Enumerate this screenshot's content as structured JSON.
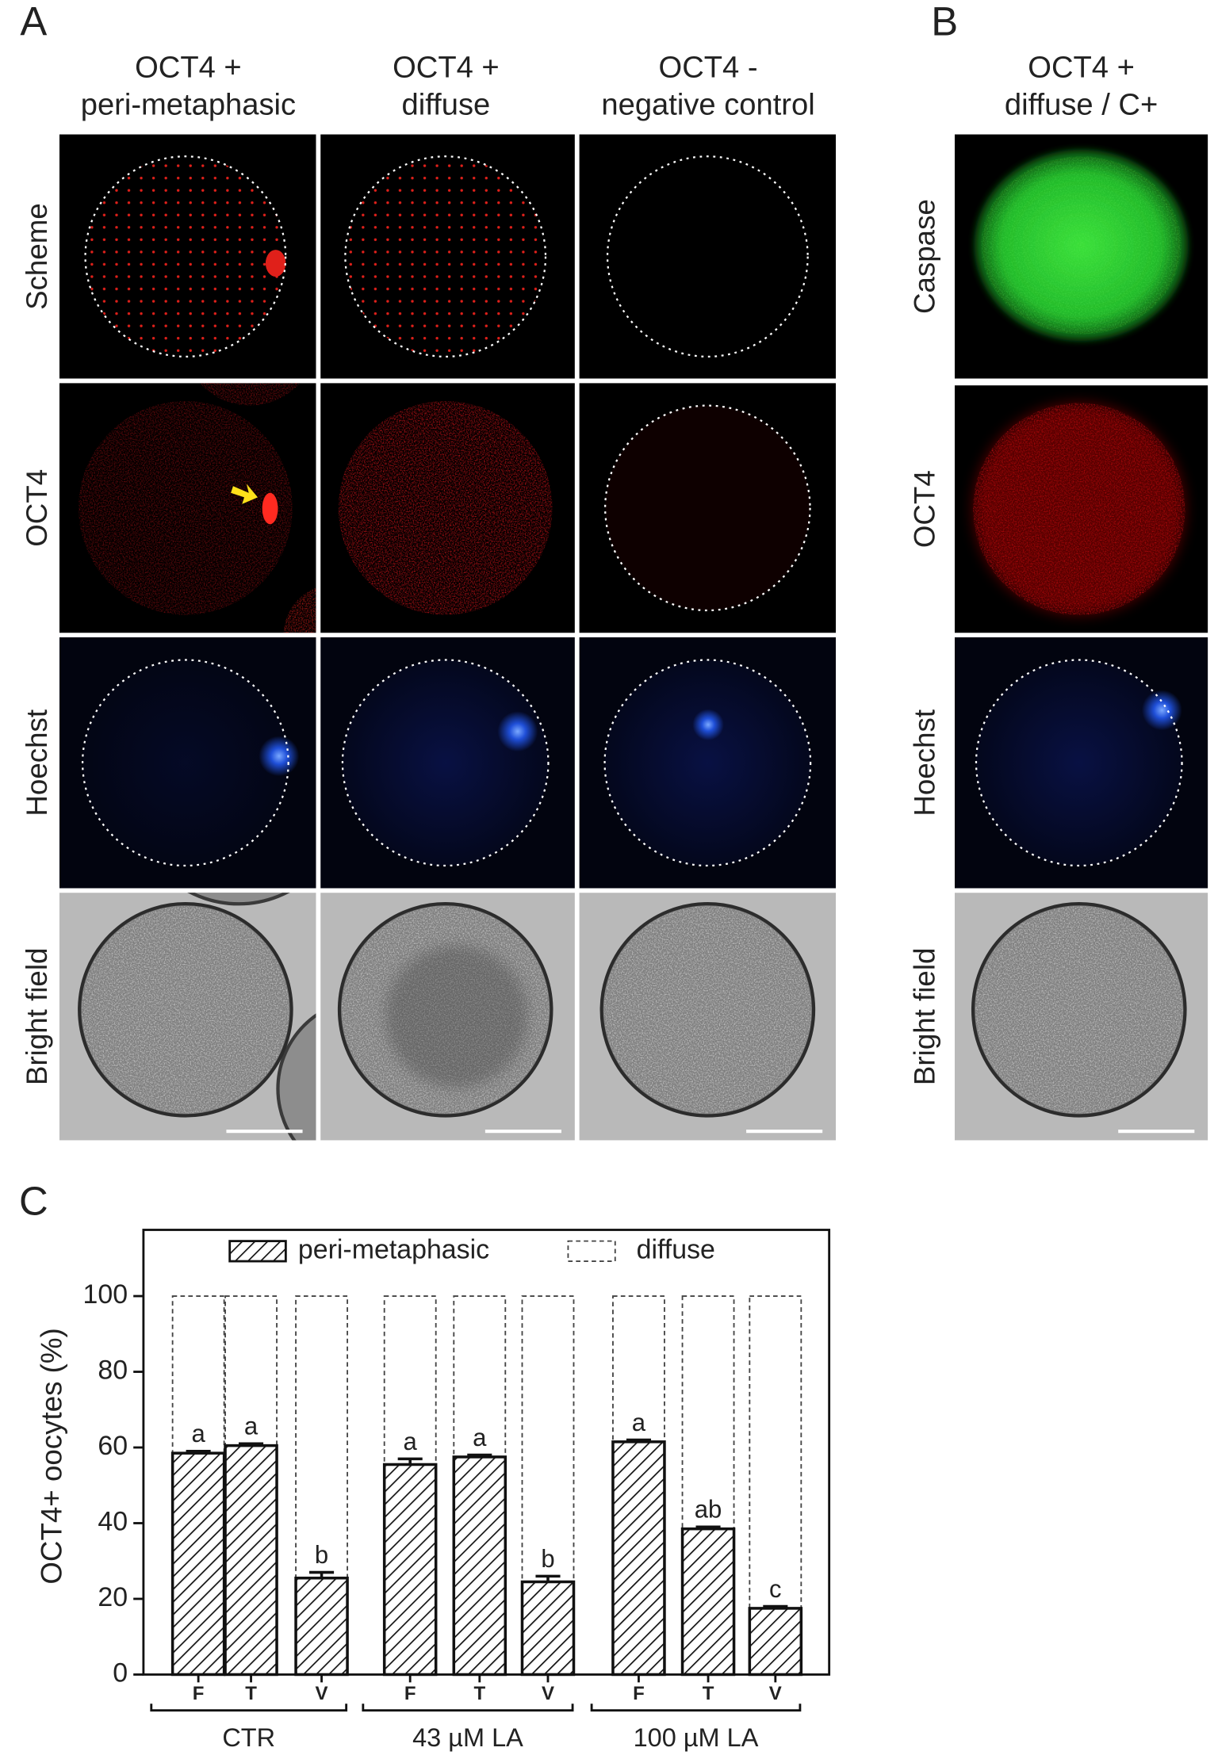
{
  "figure": {
    "panel_labels": [
      "A",
      "B",
      "C"
    ],
    "columns": [
      [
        "OCT4 +",
        "peri-metaphasic"
      ],
      [
        "OCT4 +",
        "diffuse"
      ],
      [
        "OCT4 -",
        "negative control"
      ],
      [
        "OCT4 +",
        "diffuse / C+"
      ]
    ],
    "rows_A": [
      "Scheme",
      "OCT4",
      "Hoechst",
      "Bright field"
    ],
    "rows_B": [
      "Caspase",
      "OCT4",
      "Hoechst",
      "Bright field"
    ]
  },
  "chart_data": {
    "type": "bar",
    "y_label": "OCT4+ oocytes (%)",
    "categories": [
      "F",
      "T",
      "V",
      "F",
      "T",
      "V",
      "F",
      "T",
      "V"
    ],
    "groups": [
      "CTR",
      "43 µM LA",
      "100 µM LA"
    ],
    "series": [
      {
        "name": "peri-metaphasic",
        "color": "#111111",
        "values": [
          58.5,
          60.5,
          25.5,
          55.5,
          57.5,
          24.5,
          61.5,
          38.5,
          17.5
        ],
        "errors": [
          0.5,
          0.5,
          1.5,
          1.5,
          0.5,
          1.5,
          0.5,
          0.5,
          0.5
        ],
        "letters": [
          "a",
          "a",
          "b",
          "a",
          "a",
          "b",
          "a",
          "ab",
          "c"
        ]
      },
      {
        "name": "diffuse",
        "color": "#444444",
        "values": [
          41.5,
          39.5,
          74.5,
          44.5,
          42.5,
          75.5,
          38.5,
          61.5,
          82.5
        ]
      }
    ],
    "stacked": true,
    "ylim": [
      0,
      117.5
    ],
    "yticks": [
      0,
      20,
      40,
      60,
      80,
      100
    ],
    "legend": "top"
  }
}
